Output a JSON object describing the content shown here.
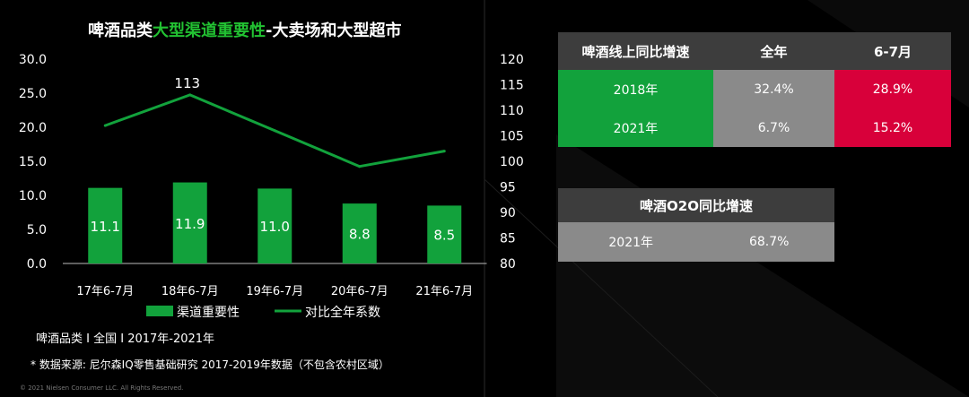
{
  "title": {
    "part1": "啤酒品类",
    "highlight": "大型渠道重要性",
    "part2": "-大卖场和大型超市"
  },
  "chart_data": {
    "type": "bar+line",
    "categories": [
      "17年6-7月",
      "18年6-7月",
      "19年6-7月",
      "20年6-7月",
      "21年6-7月"
    ],
    "series": [
      {
        "name": "渠道重要性",
        "type": "bar",
        "axis": "left",
        "values": [
          11.1,
          11.9,
          11.0,
          8.8,
          8.5
        ],
        "labels": [
          "11.1",
          "11.9",
          "11.0",
          "8.8",
          "8.5"
        ],
        "color": "#12a23c"
      },
      {
        "name": "对比全年系数",
        "type": "line",
        "axis": "right",
        "values": [
          107,
          113,
          106,
          99,
          102
        ],
        "color": "#12a23c"
      }
    ],
    "line_annotation": {
      "index": 1,
      "text": "113"
    },
    "left_axis": {
      "ylim": [
        0,
        30
      ],
      "ticks": [
        "0.0",
        "5.0",
        "10.0",
        "15.0",
        "20.0",
        "25.0",
        "30.0"
      ]
    },
    "right_axis": {
      "ylim": [
        80,
        120
      ],
      "ticks": [
        "80",
        "85",
        "90",
        "95",
        "100",
        "105",
        "110",
        "115",
        "120"
      ]
    },
    "legend_position": "bottom",
    "grid": false
  },
  "footnotes": {
    "scope": "啤酒品类 I 全国 I 2017年-2021年",
    "source": "* 数据来源: 尼尔森IQ零售基础研究 2017-2019年数据（不包含农村区域）",
    "copyright": "© 2021 Nielsen Consumer LLC. All Rights Reserved."
  },
  "table_online": {
    "headers": [
      "啤酒线上同比增速",
      "全年",
      "6-7月"
    ],
    "rows": [
      [
        "2018年",
        "32.4%",
        "28.9%"
      ],
      [
        "2021年",
        "6.7%",
        "15.2%"
      ]
    ],
    "colors": {
      "year": "#12a23c",
      "full_year": "#8a8a8a",
      "june_july": "#d8003a",
      "header": "#3d3d3d"
    }
  },
  "table_o2o": {
    "header": "啤酒O2O同比增速",
    "rows": [
      [
        "2021年",
        "68.7%"
      ]
    ]
  }
}
